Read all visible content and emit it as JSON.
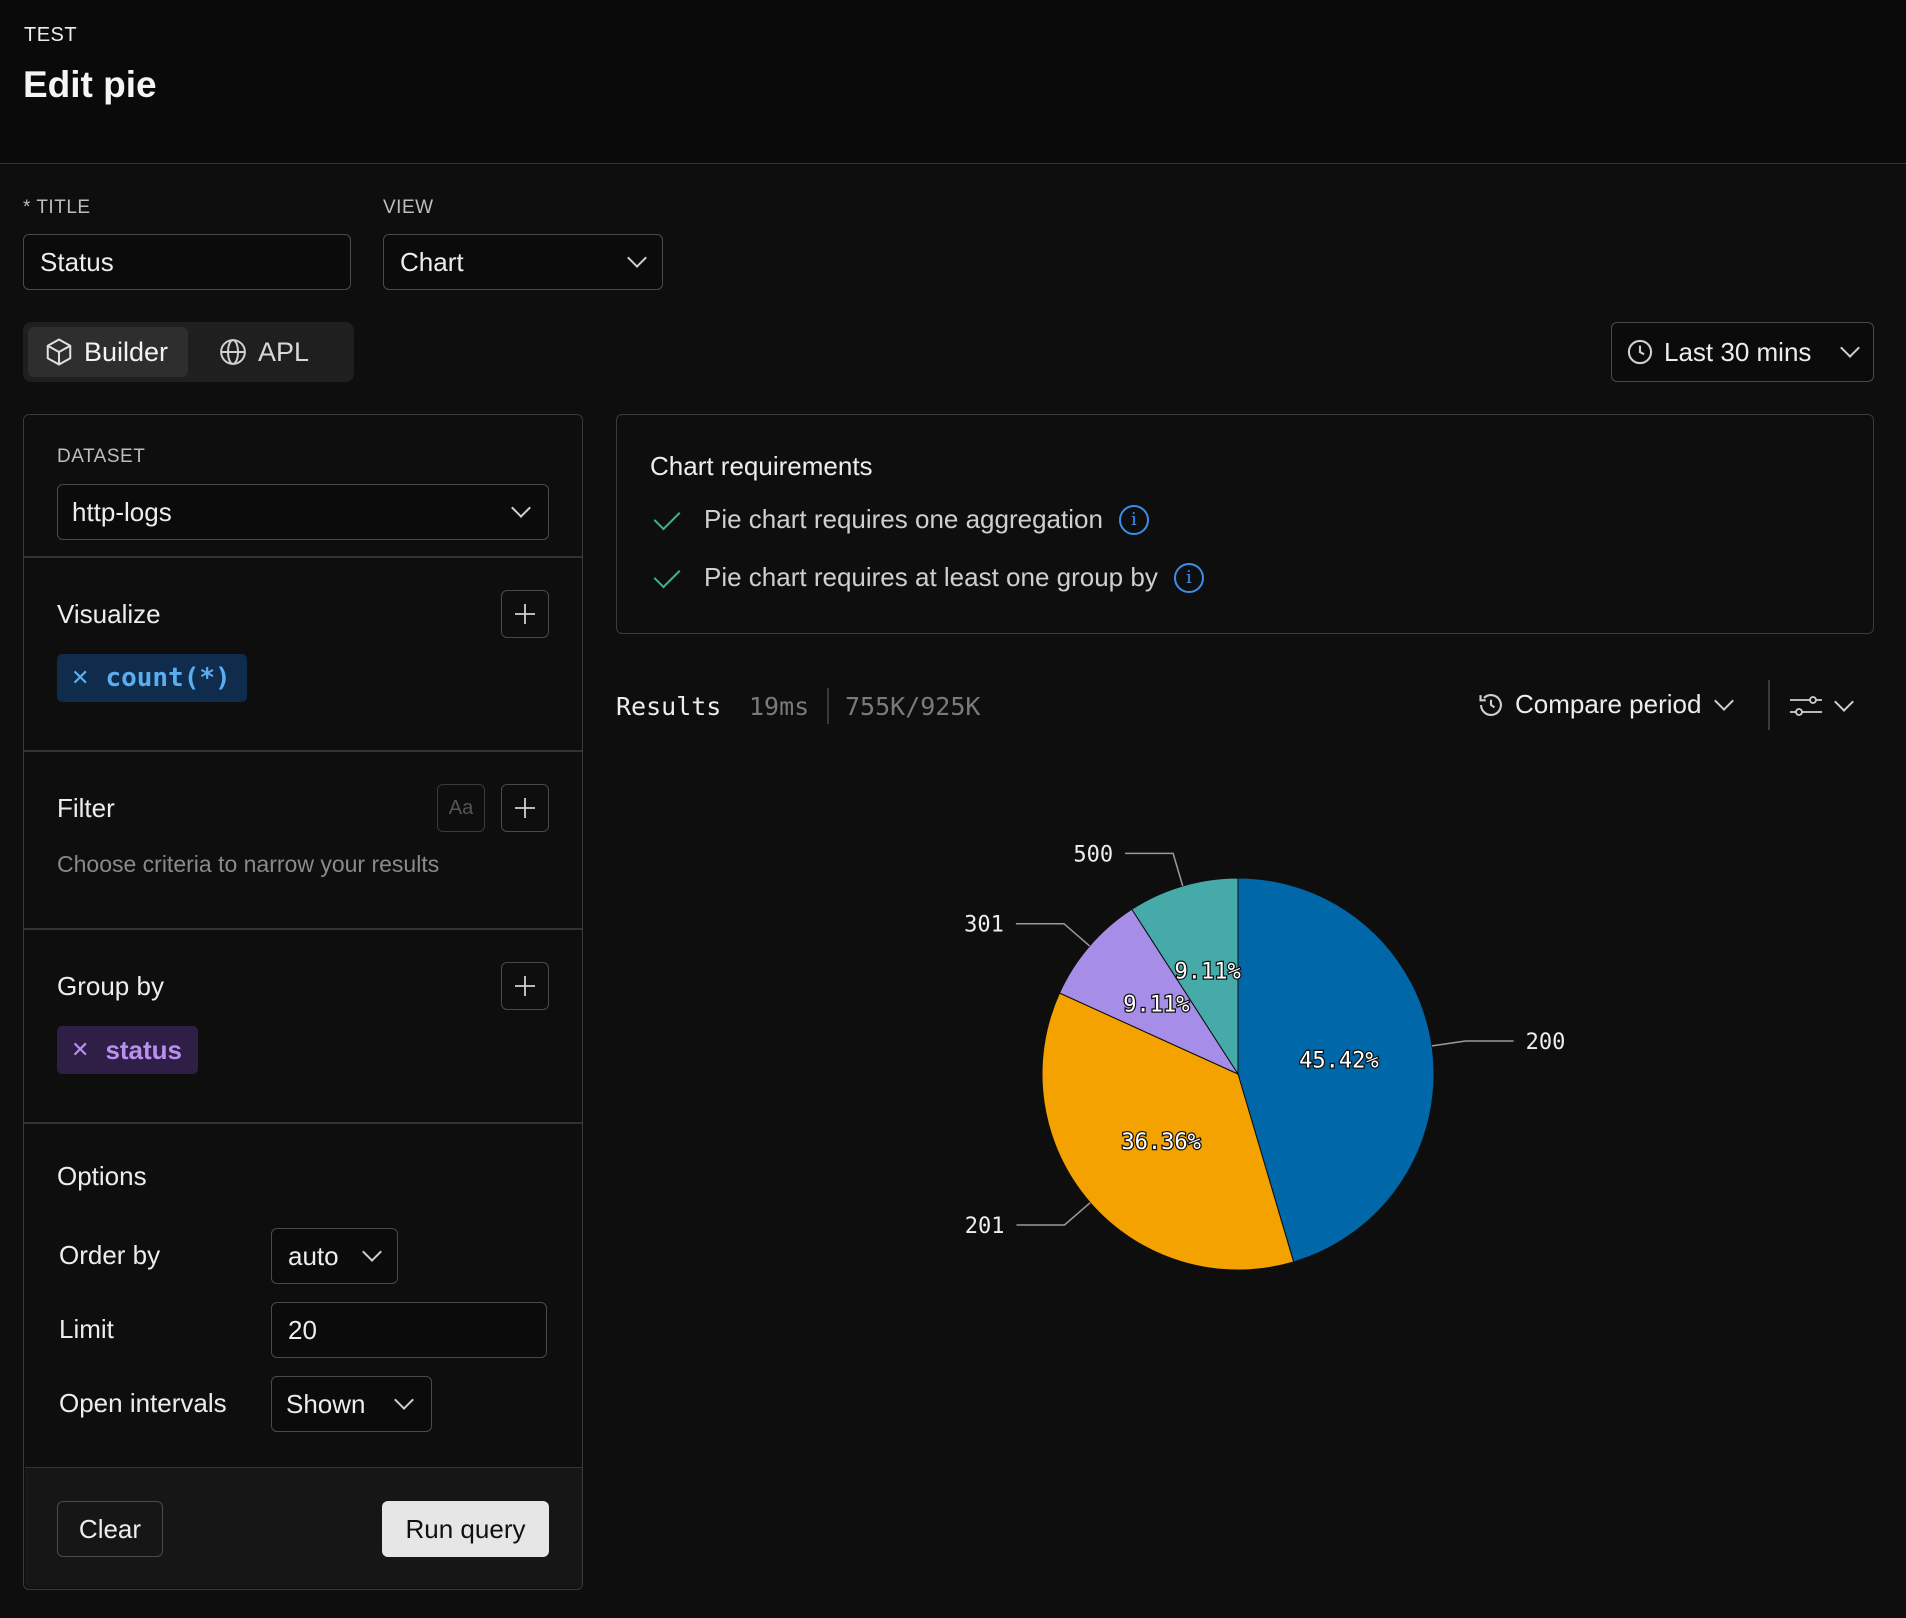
{
  "header": {
    "kicker": "TEST",
    "title": "Edit pie"
  },
  "form": {
    "title_label": "* TITLE",
    "title_value": "Status",
    "view_label": "VIEW",
    "view_value": "Chart"
  },
  "mode_tabs": [
    {
      "label": "Builder",
      "icon": "cube-icon",
      "active": true
    },
    {
      "label": "APL",
      "icon": "globe-icon",
      "active": false
    }
  ],
  "time_range": {
    "label": "Last 30 mins",
    "icon": "clock-icon"
  },
  "builder": {
    "dataset_label": "DATASET",
    "dataset_value": "http-logs",
    "visualize": {
      "title": "Visualize",
      "chip": "count(*)"
    },
    "filter": {
      "title": "Filter",
      "case_toggle": "Aa",
      "hint": "Choose criteria to narrow your results"
    },
    "group_by": {
      "title": "Group by",
      "chip": "status"
    },
    "options": {
      "title": "Options",
      "order_by_label": "Order by",
      "order_by_value": "auto",
      "limit_label": "Limit",
      "limit_value": "20",
      "open_intervals_label": "Open intervals",
      "open_intervals_value": "Shown"
    },
    "clear_label": "Clear",
    "run_label": "Run query"
  },
  "requirements": {
    "title": "Chart requirements",
    "items": [
      "Pie chart requires one aggregation",
      "Pie chart requires at least one group by"
    ],
    "info_glyph": "i"
  },
  "results": {
    "label": "Results",
    "time": "19ms",
    "rows": "755K/925K",
    "compare_label": "Compare period"
  },
  "colors": {
    "accent_blue": "#0068a8",
    "orange": "#f3a200",
    "purple": "#a58de8",
    "teal": "#45aaa8",
    "chip_blue_bg": "#0f2c4d",
    "chip_purple_bg": "#2f1e45"
  },
  "chart_data": {
    "type": "pie",
    "slices": [
      {
        "label": "200",
        "value": 45.42,
        "display": "45.42%",
        "color": "#0068a8"
      },
      {
        "label": "201",
        "value": 36.36,
        "display": "36.36%",
        "color": "#f3a200"
      },
      {
        "label": "301",
        "value": 9.11,
        "display": "9.11%",
        "color": "#a58de8"
      },
      {
        "label": "500",
        "value": 9.11,
        "display": "9.11%",
        "color": "#45aaa8"
      }
    ]
  }
}
